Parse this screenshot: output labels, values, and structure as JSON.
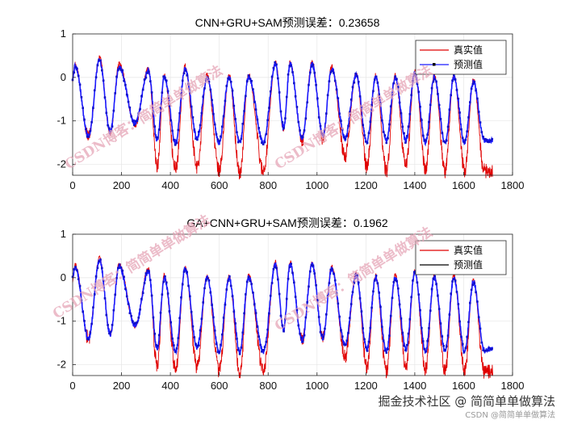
{
  "chart_data": [
    {
      "type": "line",
      "title": "CNN+GRU+SAM预测误差：0.23658",
      "xlim": [
        0,
        1800
      ],
      "ylim": [
        -2.25,
        1
      ],
      "xticks": [
        0,
        200,
        400,
        600,
        800,
        1000,
        1200,
        1400,
        1600,
        1800
      ],
      "yticks": [
        1,
        0,
        -1,
        -2
      ],
      "grid": true,
      "legend_position": "top-right",
      "n_points": 1720,
      "series": [
        {
          "name": "真实值",
          "color": "#e00000",
          "style": "line"
        },
        {
          "name": "预测值",
          "color": "#1a1aff",
          "style": "line-with-markers"
        }
      ],
      "profile": {
        "peaks_x": [
          10,
          110,
          190,
          310,
          375,
          460,
          550,
          640,
          720,
          830,
          890,
          980,
          1060,
          1160,
          1240,
          1320,
          1400,
          1480,
          1560,
          1640
        ],
        "peak_values": [
          0.3,
          0.45,
          0.3,
          0.2,
          0.05,
          0.25,
          0.05,
          0.05,
          0.05,
          0.35,
          0.35,
          0.35,
          0.25,
          0.1,
          0.05,
          0.05,
          0.15,
          0.05,
          0.05,
          -0.05
        ],
        "actual_troughs": [
          -1.4,
          -1.3,
          -1.1,
          -2.05,
          -2.1,
          -2.05,
          -2.15,
          -2.2,
          -2.15,
          -1.2,
          -1.45,
          -1.4,
          -1.8,
          -2.05,
          -2.15,
          -2.05,
          -2.1,
          -2.15,
          -2.15,
          -2.15
        ],
        "predicted_troughs": [
          -1.35,
          -1.25,
          -1.05,
          -1.45,
          -1.5,
          -1.4,
          -1.5,
          -1.5,
          -1.5,
          -1.15,
          -1.4,
          -1.35,
          -1.4,
          -1.5,
          -1.45,
          -1.45,
          -1.5,
          -1.5,
          -1.5,
          -1.45
        ]
      }
    },
    {
      "type": "line",
      "title": "GA+CNN+GRU+SAM预测误差：0.1962",
      "xlim": [
        0,
        1800
      ],
      "ylim": [
        -2.25,
        1
      ],
      "xticks": [
        0,
        200,
        400,
        600,
        800,
        1000,
        1200,
        1400,
        1600,
        1800
      ],
      "yticks": [
        1,
        0,
        -1,
        -2
      ],
      "grid": true,
      "legend_position": "top-right",
      "n_points": 1720,
      "series": [
        {
          "name": "真实值",
          "color": "#e00000",
          "style": "line"
        },
        {
          "name": "预测值",
          "color": "#1a1aff",
          "style": "line-with-markers"
        }
      ],
      "profile": {
        "peaks_x": [
          10,
          110,
          190,
          310,
          375,
          460,
          550,
          640,
          720,
          830,
          890,
          980,
          1060,
          1160,
          1240,
          1320,
          1400,
          1480,
          1560,
          1640
        ],
        "peak_values": [
          0.3,
          0.45,
          0.3,
          0.2,
          0.05,
          0.25,
          0.05,
          0.05,
          0.05,
          0.35,
          0.35,
          0.35,
          0.25,
          0.1,
          0.05,
          0.05,
          0.15,
          0.05,
          0.05,
          -0.05
        ],
        "actual_troughs": [
          -1.4,
          -1.3,
          -1.1,
          -2.05,
          -2.1,
          -2.05,
          -2.15,
          -2.2,
          -2.15,
          -1.2,
          -1.45,
          -1.4,
          -1.8,
          -2.05,
          -2.15,
          -2.05,
          -2.1,
          -2.15,
          -2.15,
          -2.15
        ],
        "predicted_troughs": [
          -1.4,
          -1.3,
          -1.1,
          -1.65,
          -1.7,
          -1.6,
          -1.7,
          -1.7,
          -1.7,
          -1.2,
          -1.45,
          -1.4,
          -1.55,
          -1.65,
          -1.7,
          -1.65,
          -1.7,
          -1.7,
          -1.7,
          -1.65
        ]
      }
    }
  ],
  "watermark_text": "CSDN博客：简简单单做算法",
  "footer": {
    "brand": "掘金技术社区 @ 简简单单做算法",
    "sub": "CSDN @简简单单做算法"
  }
}
